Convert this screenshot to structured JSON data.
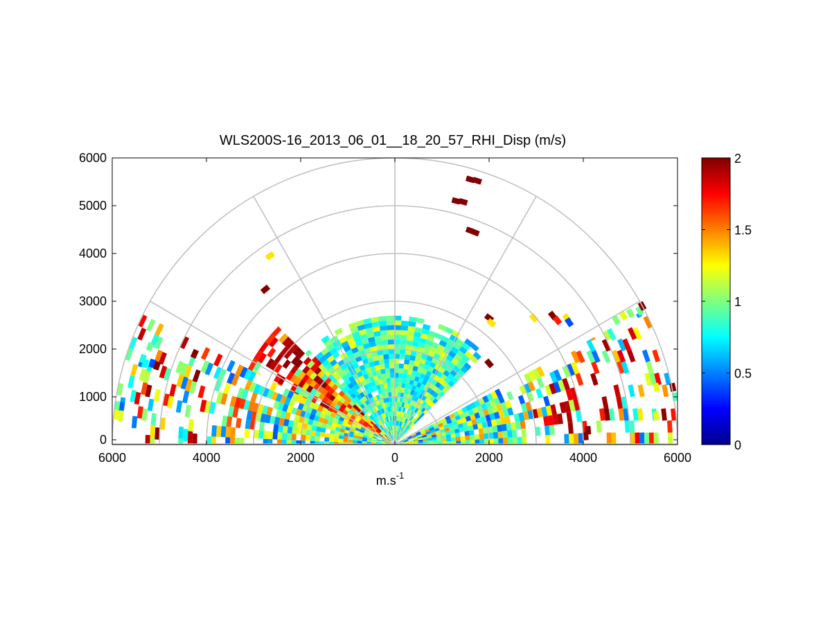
{
  "chart_data": {
    "type": "heatmap",
    "title": "WLS200S-16_2013_06_01__18_20_57_RHI_Disp (m/s)",
    "xlabel": "m.s",
    "xlabel_superscript": "-1",
    "ylabel": "",
    "xlim": [
      -6000,
      6000
    ],
    "ylim": [
      0,
      6000
    ],
    "x_ticks": [
      -6000,
      -4000,
      -2000,
      0,
      2000,
      4000,
      6000
    ],
    "x_tick_labels": [
      "6000",
      "4000",
      "2000",
      "0",
      "2000",
      "4000",
      "6000"
    ],
    "y_ticks": [
      0,
      1000,
      2000,
      3000,
      4000,
      5000,
      6000
    ],
    "y_tick_labels": [
      "0",
      "1000",
      "2000",
      "3000",
      "4000",
      "5000",
      "6000"
    ],
    "polar_grid": {
      "range_rings": [
        1000,
        2000,
        3000,
        4000,
        5000,
        6000
      ],
      "angle_spokes_deg": [
        30,
        60,
        90,
        120,
        150
      ]
    },
    "colorbar": {
      "colormap": "jet",
      "range": [
        0,
        2
      ],
      "ticks": [
        0,
        0.5,
        1,
        1.5,
        2
      ],
      "tick_labels": [
        "0",
        "0.5",
        "1",
        "1.5",
        "2"
      ]
    },
    "scan_sectors": [
      {
        "name": "right-low-sector",
        "az_from_deg": 0,
        "az_to_deg": 28,
        "max_range": 6000,
        "base_value": 0.95,
        "spread": 0.55
      },
      {
        "name": "left-low-sector",
        "az_from_deg": 153,
        "az_to_deg": 180,
        "max_range": 6000,
        "base_value": 0.95,
        "spread": 0.55
      },
      {
        "name": "central-sector",
        "az_from_deg": 45,
        "az_to_deg": 135,
        "max_range": 2700,
        "base_value": 0.9,
        "spread": 0.35
      },
      {
        "name": "upper-left-sector",
        "az_from_deg": 135,
        "az_to_deg": 153,
        "max_range": 3500,
        "base_value": 1.4,
        "spread": 0.6
      }
    ],
    "high_value_clusters": [
      {
        "x": -2100,
        "y": 1800,
        "radius": 550,
        "value": 2.0
      },
      {
        "x": -2700,
        "y": 2200,
        "radius": 400,
        "value": 1.9
      },
      {
        "x": 3600,
        "y": 700,
        "radius": 650,
        "value": 1.95
      },
      {
        "x": 4300,
        "y": 1100,
        "radius": 500,
        "value": 2.0
      },
      {
        "x": -3300,
        "y": 700,
        "radius": 450,
        "value": 1.7
      }
    ],
    "isolated_points": [
      {
        "x": 1600,
        "y": 5550,
        "value": 2.0
      },
      {
        "x": 1750,
        "y": 5520,
        "value": 2.0
      },
      {
        "x": 1300,
        "y": 5100,
        "value": 2.0
      },
      {
        "x": 1450,
        "y": 5080,
        "value": 2.0
      },
      {
        "x": 1600,
        "y": 4480,
        "value": 2.0
      },
      {
        "x": 1700,
        "y": 4440,
        "value": 2.0
      },
      {
        "x": -2650,
        "y": 3950,
        "value": 1.3
      },
      {
        "x": -2750,
        "y": 3250,
        "value": 2.0
      },
      {
        "x": -4250,
        "y": 1900,
        "value": 2.0
      },
      {
        "x": -5200,
        "y": 2050,
        "value": 0.95
      },
      {
        "x": -5350,
        "y": 1800,
        "value": 0.8
      },
      {
        "x": -5150,
        "y": 1700,
        "value": 0.4
      },
      {
        "x": -5300,
        "y": 1700,
        "value": 0.75
      },
      {
        "x": -5050,
        "y": 1650,
        "value": 2.0
      },
      {
        "x": -5800,
        "y": 800,
        "value": 0.45
      },
      {
        "x": -5900,
        "y": 820,
        "value": 0.95
      },
      {
        "x": 2000,
        "y": 2650,
        "value": 2.0
      },
      {
        "x": 2050,
        "y": 2550,
        "value": 1.3
      },
      {
        "x": 2950,
        "y": 2650,
        "value": 1.3
      },
      {
        "x": 3350,
        "y": 2700,
        "value": 2.0
      },
      {
        "x": 3450,
        "y": 2600,
        "value": 1.7
      },
      {
        "x": 3650,
        "y": 2650,
        "value": 1.3
      },
      {
        "x": 3700,
        "y": 2560,
        "value": 0.4
      },
      {
        "x": 4700,
        "y": 2600,
        "value": 1.0
      },
      {
        "x": 4850,
        "y": 2700,
        "value": 1.2
      },
      {
        "x": 5000,
        "y": 2750,
        "value": 1.0
      },
      {
        "x": 5200,
        "y": 2800,
        "value": 0.95
      },
      {
        "x": 5250,
        "y": 2900,
        "value": 2.0
      },
      {
        "x": 2000,
        "y": 1700,
        "value": 2.0
      },
      {
        "x": 4050,
        "y": 180,
        "value": 2.0
      },
      {
        "x": 4100,
        "y": 300,
        "value": 2.0
      },
      {
        "x": 5550,
        "y": 600,
        "value": 1.2
      },
      {
        "x": 5550,
        "y": 1200,
        "value": 1.2
      },
      {
        "x": 5900,
        "y": 1200,
        "value": 2.0
      },
      {
        "x": 5950,
        "y": 1000,
        "value": 0.9
      }
    ]
  }
}
